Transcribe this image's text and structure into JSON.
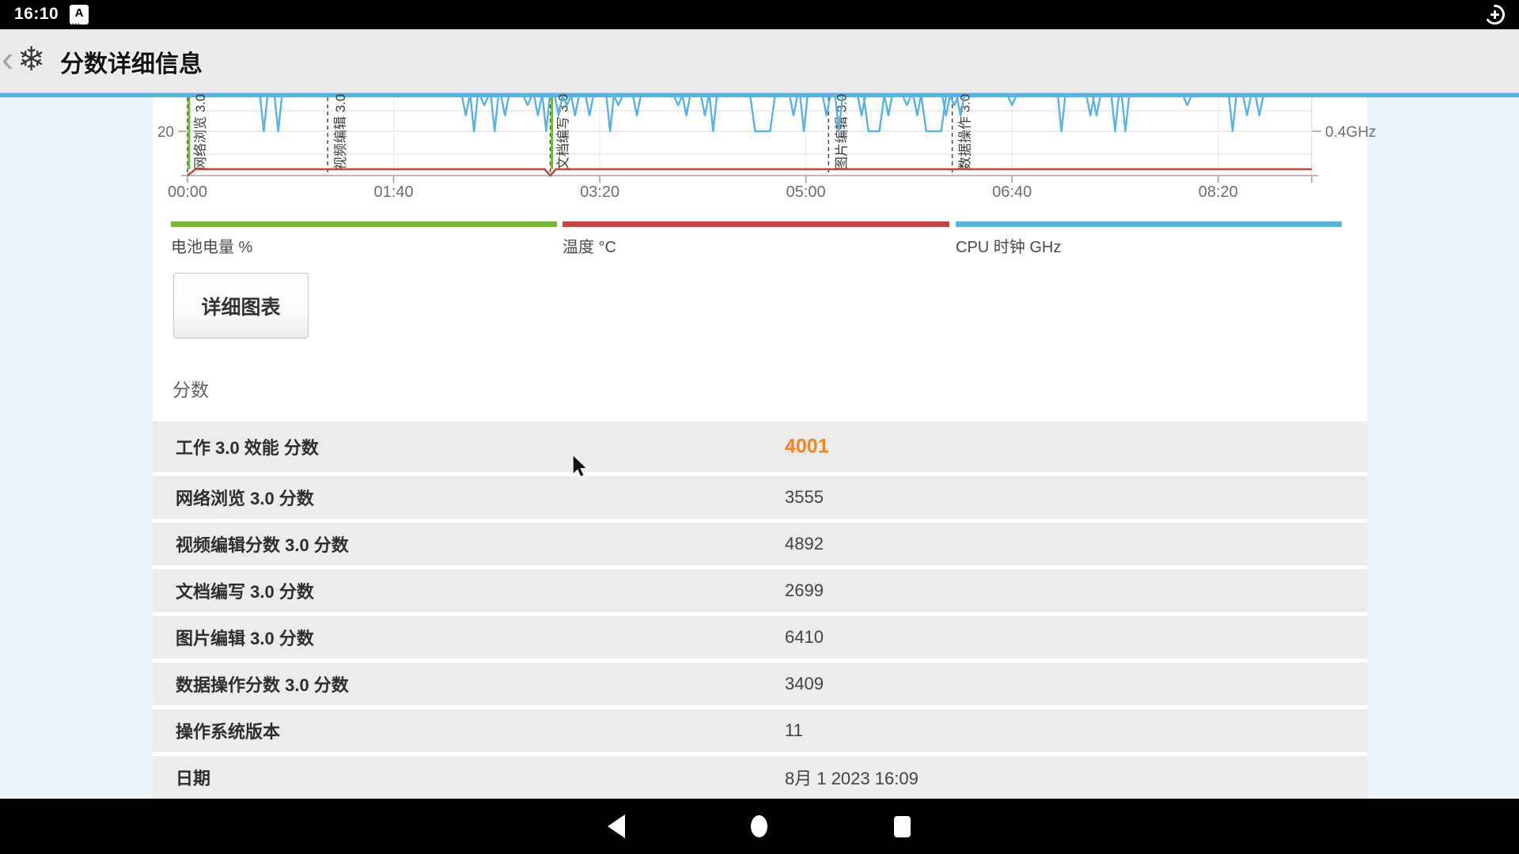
{
  "colors": {
    "page_bg": "#ebf4fa",
    "green": "#77b836",
    "red": "#c64543",
    "blue": "#58b2e4",
    "orange": "#f5831f",
    "row_gray": "#ececec",
    "appbar_gray": "#e9e9e9"
  },
  "status_bar": {
    "clock": "16:10",
    "input_method_icon_letter": "A"
  },
  "app_bar": {
    "title": "分数详细信息"
  },
  "chart_data": {
    "type": "line",
    "x_axis": {
      "tick_labels": [
        "00:00",
        "01:40",
        "03:20",
        "05:00",
        "06:40",
        "08:20"
      ],
      "tick_interval_s": 100
    },
    "left_axis": {
      "tick_label": "20"
    },
    "right_axis": {
      "tick_label": "0.4GHz"
    },
    "sections": [
      {
        "label": "网络浏览 3.0",
        "t": 0,
        "battery_marker": true
      },
      {
        "label": "视频编辑 3.0",
        "t": 68
      },
      {
        "label": "文档编写 3.0",
        "t": 176,
        "battery_marker": true
      },
      {
        "label": "图片编辑 3.0",
        "t": 311
      },
      {
        "label": "数据操作 3.0",
        "t": 371
      }
    ],
    "temperature_line": {
      "shape": "flat-low",
      "notches_at_battery_markers": true
    },
    "cpu_spikes": [
      [
        37,
        "deep"
      ],
      [
        44,
        "deep"
      ],
      [
        135,
        "med"
      ],
      [
        139,
        "deep"
      ],
      [
        144,
        "small"
      ],
      [
        149,
        "deep"
      ],
      [
        154,
        "med"
      ],
      [
        165,
        "small"
      ],
      [
        170,
        "med"
      ],
      [
        174,
        "deep"
      ],
      [
        180,
        "med"
      ],
      [
        184,
        "small"
      ],
      [
        188,
        "med"
      ],
      [
        195,
        "med"
      ],
      [
        205,
        "deep"
      ],
      [
        209,
        "small"
      ],
      [
        218,
        "med"
      ],
      [
        238,
        "small"
      ],
      [
        242,
        "med"
      ],
      [
        251,
        "med"
      ],
      [
        255,
        "deep"
      ],
      [
        294,
        "med"
      ],
      [
        299,
        "deep"
      ],
      [
        310,
        "med"
      ],
      [
        316,
        "deep"
      ],
      [
        327,
        "med"
      ],
      [
        340,
        "med"
      ],
      [
        349,
        "small"
      ],
      [
        354,
        "med"
      ],
      [
        368,
        "med"
      ],
      [
        372,
        "small"
      ],
      [
        375,
        "med"
      ],
      [
        400,
        "small"
      ],
      [
        424,
        "deep"
      ],
      [
        438,
        "med"
      ],
      [
        441,
        "med"
      ],
      [
        450,
        "deep"
      ],
      [
        455,
        "deep"
      ],
      [
        485,
        "small"
      ],
      [
        507,
        "deep"
      ],
      [
        514,
        "med"
      ],
      [
        520,
        "med"
      ]
    ],
    "cpu_dips": [
      [
        275,
        283,
        "deep"
      ],
      [
        330,
        336,
        "deep"
      ],
      [
        358,
        366,
        "deep"
      ]
    ],
    "legend": [
      {
        "label": "电池电量 %",
        "color": "#77b836"
      },
      {
        "label": "温度 °C",
        "color": "#c64543"
      },
      {
        "label": "CPU 时钟 GHz",
        "color": "#58b2e4"
      }
    ]
  },
  "detail_button": {
    "label": "详细图表"
  },
  "scores": {
    "heading": "分数",
    "rows": [
      {
        "label": "工作 3.0 效能 分数",
        "value": "4001"
      },
      {
        "label": "网络浏览 3.0 分数",
        "value": "3555"
      },
      {
        "label": "视频编辑分数 3.0 分数",
        "value": "4892"
      },
      {
        "label": "文档编写 3.0 分数",
        "value": "2699"
      },
      {
        "label": "图片编辑 3.0 分数",
        "value": "6410"
      },
      {
        "label": "数据操作分数 3.0 分数",
        "value": "3409"
      },
      {
        "label": "操作系统版本",
        "value": "11"
      },
      {
        "label": "日期",
        "value": "8月 1 2023 16:09"
      }
    ]
  }
}
